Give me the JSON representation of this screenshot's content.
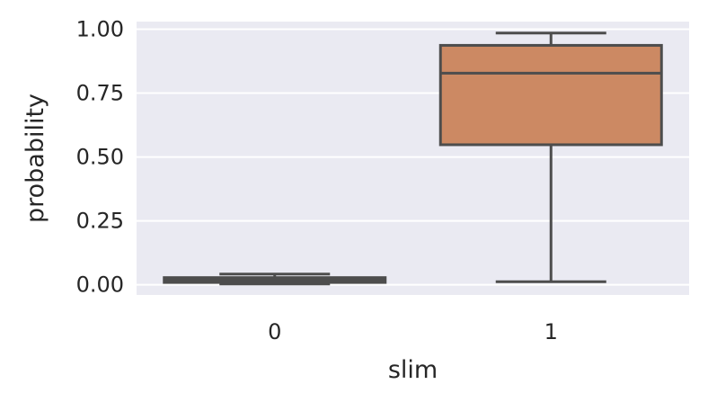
{
  "chart_data": {
    "type": "box",
    "xlabel": "slim",
    "ylabel": "probability",
    "ylim": [
      -0.04,
      1.03
    ],
    "yticks": [
      0.0,
      0.25,
      0.5,
      0.75,
      1.0
    ],
    "ytick_labels": [
      "0.00",
      "0.25",
      "0.50",
      "0.75",
      "1.00"
    ],
    "categories": [
      "0",
      "1"
    ],
    "boxes": [
      {
        "category": "0",
        "whisker_low": 0.003,
        "q1": 0.009,
        "median": 0.018,
        "q3": 0.028,
        "whisker_high": 0.042,
        "color": "#4c72b0"
      },
      {
        "category": "1",
        "whisker_low": 0.012,
        "q1": 0.548,
        "median": 0.828,
        "q3": 0.937,
        "whisker_high": 0.985,
        "color": "#cc8963"
      }
    ],
    "grid": true,
    "background": "#eaeaf2",
    "line_color": "#4d4d4d"
  }
}
